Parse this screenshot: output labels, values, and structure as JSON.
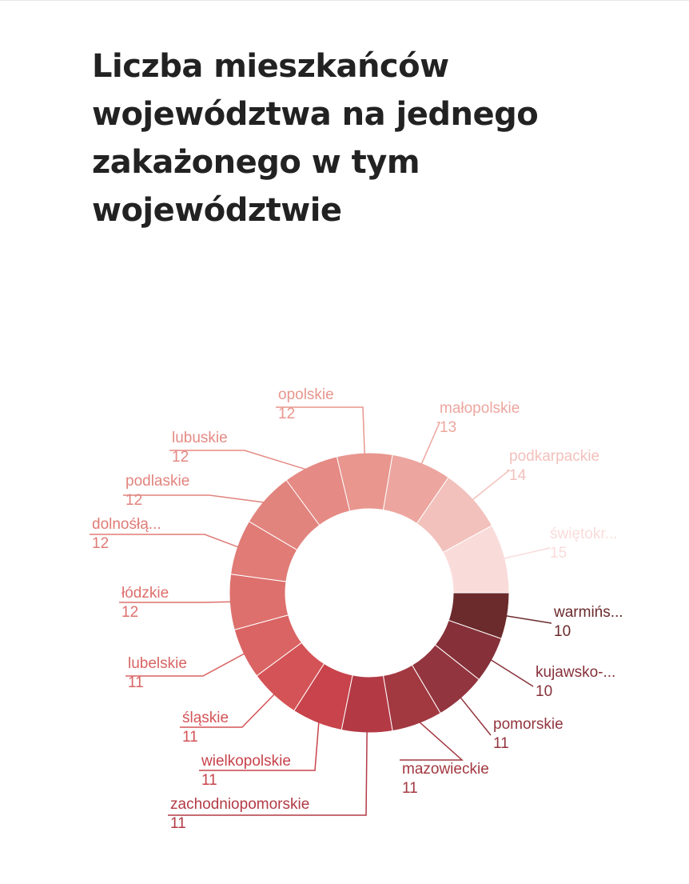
{
  "chart_data": {
    "type": "pie",
    "variant": "donut",
    "title": "Liczba mieszkańców województwa na jednego zakażonego w tym województwie",
    "legend": "none",
    "slices": [
      {
        "label": "warmińs...",
        "value": 10,
        "color": "#6b2a2b"
      },
      {
        "label": "kujawsko-...",
        "value": 10,
        "color": "#86313a"
      },
      {
        "label": "pomorskie",
        "value": 11,
        "color": "#93353e"
      },
      {
        "label": "mazowieckie",
        "value": 11,
        "color": "#a23840"
      },
      {
        "label": "zachodniopomorskie",
        "value": 11,
        "color": "#b33a45"
      },
      {
        "label": "wielkopolskie",
        "value": 11,
        "color": "#c8434b"
      },
      {
        "label": "śląskie",
        "value": 11,
        "color": "#d45356"
      },
      {
        "label": "lubelskie",
        "value": 11,
        "color": "#d96463"
      },
      {
        "label": "łódzkie",
        "value": 12,
        "color": "#dd706d"
      },
      {
        "label": "dolnośłą...",
        "value": 12,
        "color": "#e07b76"
      },
      {
        "label": "podlaskie",
        "value": 12,
        "color": "#e2847e"
      },
      {
        "label": "lubuskie",
        "value": 12,
        "color": "#e58a84"
      },
      {
        "label": "opolskie",
        "value": 12,
        "color": "#e8968e"
      },
      {
        "label": "małopolskie",
        "value": 13,
        "color": "#eca69f"
      },
      {
        "label": "podkarpackie",
        "value": 14,
        "color": "#f2c1bc"
      },
      {
        "label": "świętokr...",
        "value": 15,
        "color": "#f9dcda"
      }
    ]
  }
}
